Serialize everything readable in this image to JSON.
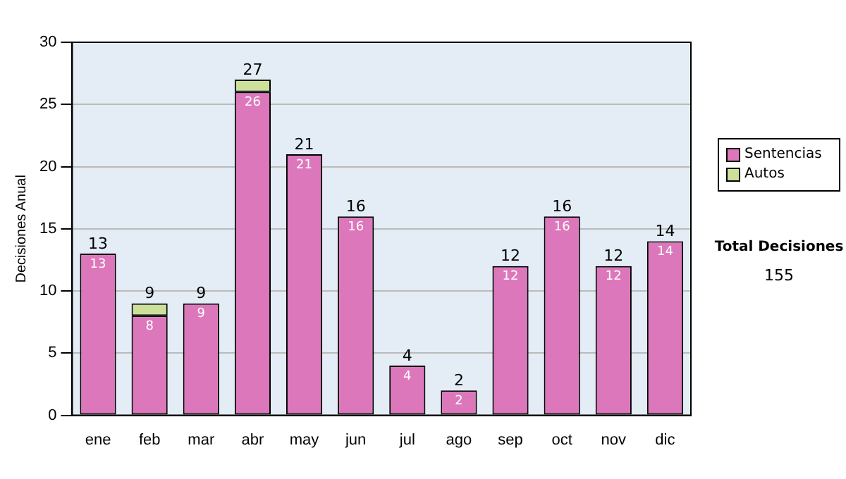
{
  "chart_data": {
    "type": "bar",
    "ylabel": "Decisiones Anual",
    "stacked": true,
    "categories": [
      "ene",
      "feb",
      "mar",
      "abr",
      "may",
      "jun",
      "jul",
      "ago",
      "sep",
      "oct",
      "nov",
      "dic"
    ],
    "series": [
      {
        "name": "Sentencias",
        "color": "#dd77bb",
        "values": [
          13,
          8,
          9,
          26,
          21,
          16,
          4,
          2,
          12,
          16,
          12,
          14
        ],
        "value_labels": [
          "13",
          "8",
          "9",
          "26",
          "21",
          "16",
          "4",
          "2",
          "12",
          "16",
          "12",
          "14"
        ]
      },
      {
        "name": "Autos",
        "color": "#cce099",
        "values": [
          0,
          1,
          0,
          1,
          0,
          0,
          0,
          0,
          0,
          0,
          0,
          0
        ]
      }
    ],
    "totals": [
      "13",
      "9",
      "9",
      "27",
      "21",
      "16",
      "4",
      "2",
      "12",
      "16",
      "12",
      "14"
    ],
    "ylim": [
      0,
      30
    ],
    "yticks": [
      0,
      5,
      10,
      15,
      20,
      25,
      30
    ],
    "grid": "y",
    "legend": "right",
    "annotations": [
      "Total Decisiones",
      "155"
    ]
  }
}
